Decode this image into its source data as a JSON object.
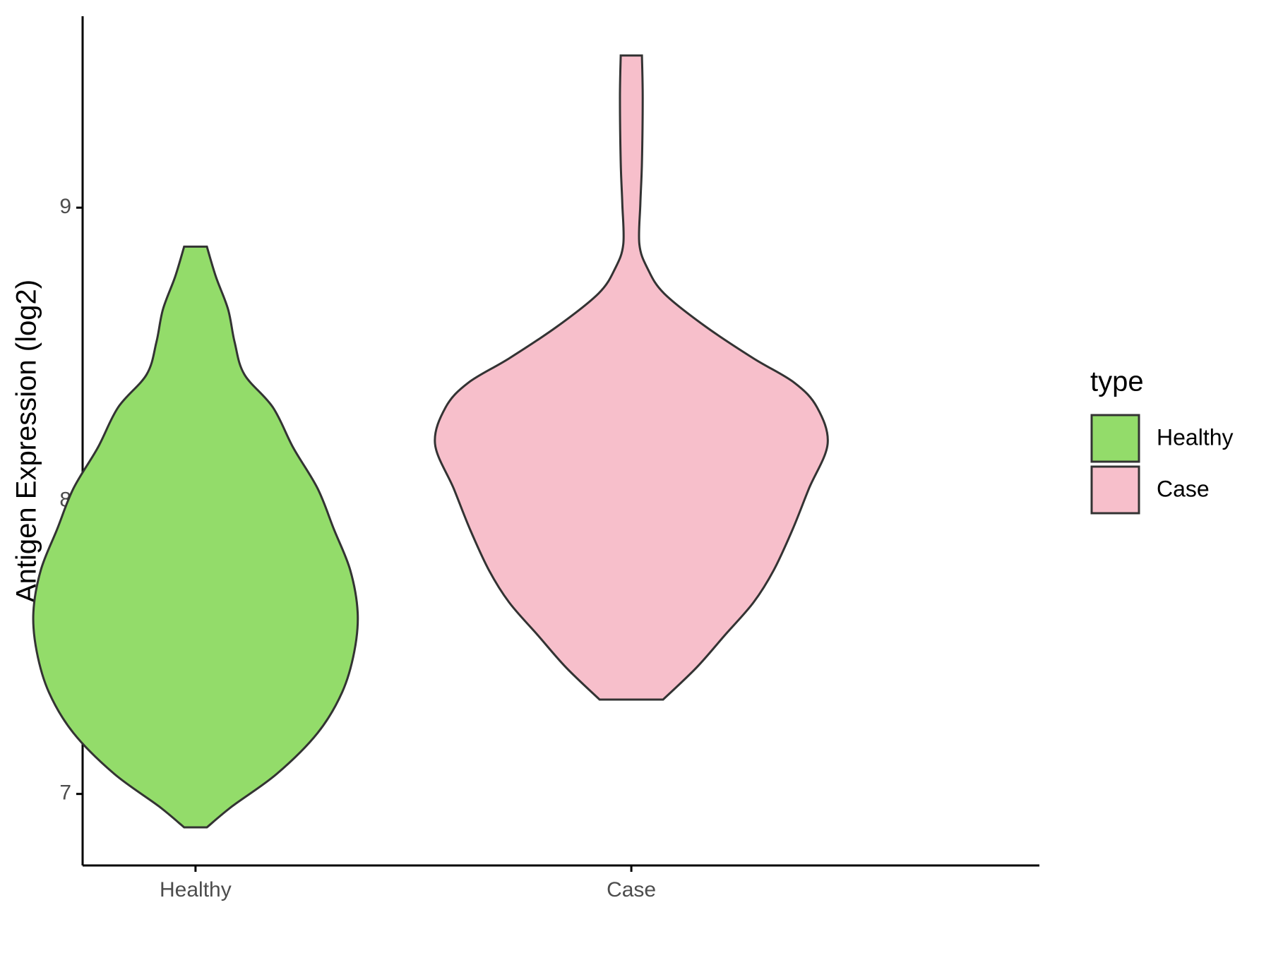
{
  "chart_data": {
    "type": "violin",
    "y_label": "Antigen Expression (log2)",
    "categories": [
      "Healthy",
      "Case"
    ],
    "legend_title": "type",
    "ylim": [
      6.756,
      9.653
    ],
    "yticks": [
      7,
      8,
      9
    ],
    "series": [
      {
        "name": "Healthy",
        "color": "#93dc6a",
        "y": [
          6.886,
          6.958,
          7.069,
          7.208,
          7.347,
          7.486,
          7.619,
          7.764,
          7.903,
          8.042,
          8.181,
          8.319,
          8.431,
          8.542,
          8.653,
          8.764,
          8.867
        ],
        "width": [
          0.058,
          0.187,
          0.415,
          0.622,
          0.747,
          0.809,
          0.826,
          0.788,
          0.705,
          0.622,
          0.498,
          0.394,
          0.249,
          0.199,
          0.166,
          0.104,
          0.058
        ]
      },
      {
        "name": "Case",
        "color": "#f7bfcb",
        "y": [
          7.322,
          7.431,
          7.542,
          7.653,
          7.764,
          7.903,
          8.042,
          8.194,
          8.319,
          8.403,
          8.486,
          8.597,
          8.708,
          8.792,
          8.875,
          9.014,
          9.153,
          9.375,
          9.519
        ],
        "width": [
          0.162,
          0.332,
          0.477,
          0.622,
          0.726,
          0.822,
          0.905,
          1.0,
          0.946,
          0.83,
          0.622,
          0.373,
          0.166,
          0.083,
          0.041,
          0.046,
          0.054,
          0.058,
          0.054
        ]
      }
    ]
  }
}
